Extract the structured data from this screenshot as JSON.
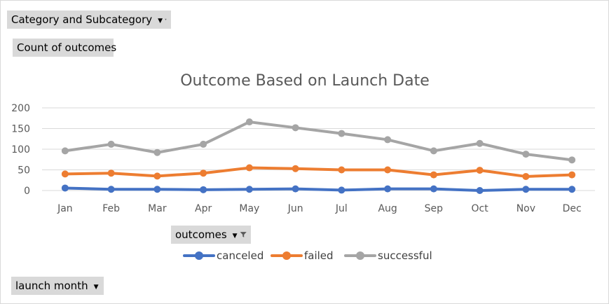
{
  "filters": {
    "category_label": "Category and Subcategory",
    "values_label": "Count of outcomes",
    "legend_field_label": "outcomes",
    "axis_field_label": "launch month"
  },
  "icons": {
    "dropdown": "chevron-down-icon",
    "filter": "filter-icon"
  },
  "colors": {
    "canceled": "#4472c4",
    "failed": "#ed7d31",
    "successful": "#a5a5a5",
    "grid": "#d9d9d9",
    "filter_bg": "#d9d9d9"
  },
  "chart_data": {
    "type": "line",
    "title": "Outcome Based on Launch Date",
    "categories": [
      "Jan",
      "Feb",
      "Mar",
      "Apr",
      "May",
      "Jun",
      "Jul",
      "Aug",
      "Sep",
      "Oct",
      "Nov",
      "Dec"
    ],
    "ylim": [
      0,
      200
    ],
    "yticks": [
      0,
      50,
      100,
      150,
      200
    ],
    "grid": true,
    "legend_position": "bottom",
    "series": [
      {
        "name": "canceled",
        "values": [
          6,
          3,
          3,
          2,
          3,
          4,
          1,
          4,
          4,
          0,
          3,
          3
        ]
      },
      {
        "name": "failed",
        "values": [
          40,
          42,
          35,
          42,
          55,
          53,
          50,
          50,
          38,
          49,
          34,
          38
        ]
      },
      {
        "name": "successful",
        "values": [
          96,
          112,
          92,
          112,
          166,
          152,
          138,
          123,
          96,
          114,
          88,
          74
        ]
      }
    ]
  }
}
